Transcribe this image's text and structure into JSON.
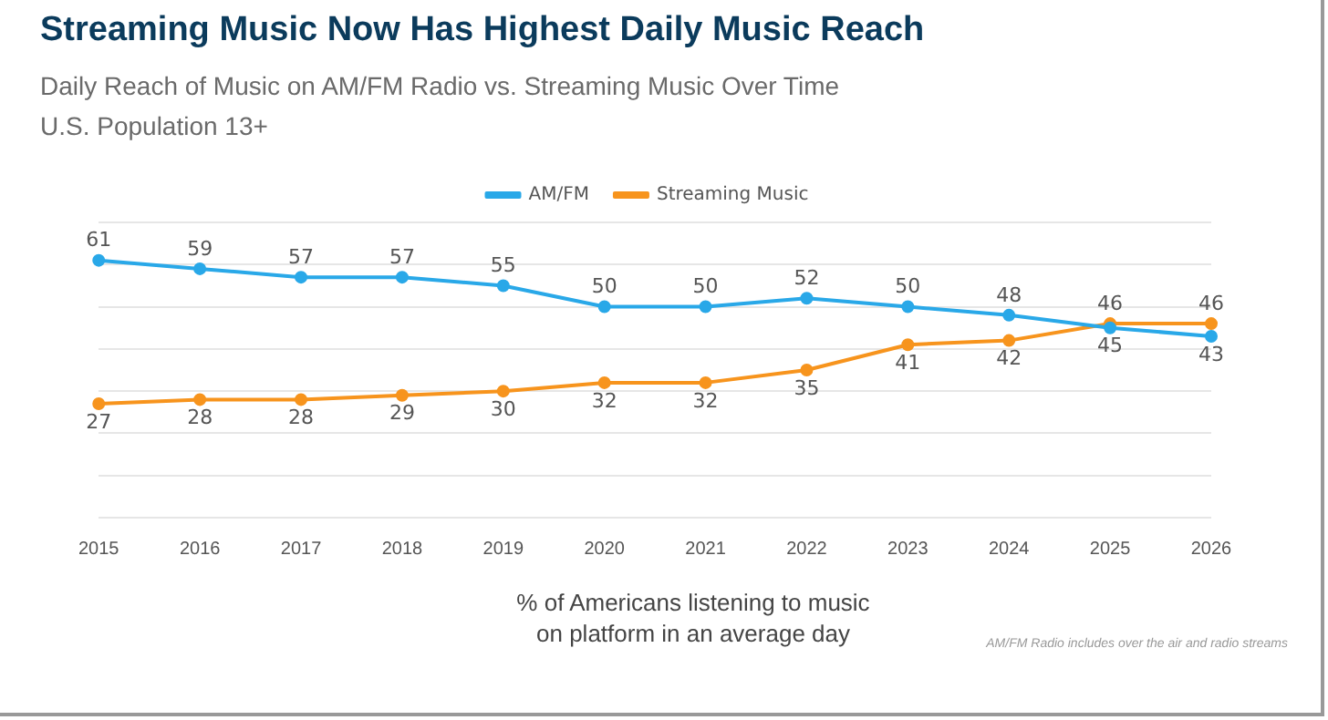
{
  "chart_data": {
    "type": "line",
    "title": "Streaming Music Now Has Highest Daily Music Reach",
    "subtitle": "Daily Reach of Music on AM/FM Radio vs. Streaming Music Over Time\nU.S. Population 13+",
    "xlabel": "% of Americans listening to music\non platform in an average day",
    "annotations": [
      "AM/FM Radio includes over the air and radio streams"
    ],
    "categories": [
      "2015",
      "2016",
      "2017",
      "2018",
      "2019",
      "2020",
      "2021",
      "2022",
      "2023",
      "2024",
      "2025",
      "2026"
    ],
    "series": [
      {
        "name": "AM/FM",
        "color": "#29a8e8",
        "values": [
          61,
          59,
          57,
          57,
          55,
          50,
          50,
          52,
          50,
          48,
          45,
          43
        ]
      },
      {
        "name": "Streaming Music",
        "color": "#f7941d",
        "values": [
          27,
          28,
          28,
          29,
          30,
          32,
          32,
          35,
          41,
          42,
          46,
          46
        ]
      }
    ],
    "ylim": [
      0,
      70
    ],
    "yticks": [
      {
        "value": 0,
        "label": null
      },
      {
        "value": 10,
        "label": null
      },
      {
        "value": 20,
        "label": null
      },
      {
        "value": 30,
        "label": null
      },
      {
        "value": 40,
        "label": null
      },
      {
        "value": 50,
        "label": null
      },
      {
        "value": 60,
        "label": null
      },
      {
        "value": 70,
        "label": null
      }
    ],
    "tick_labels": "x",
    "grid": "y",
    "legend": "top",
    "marker": "circle",
    "line_style": "solid",
    "data_labels": true
  }
}
